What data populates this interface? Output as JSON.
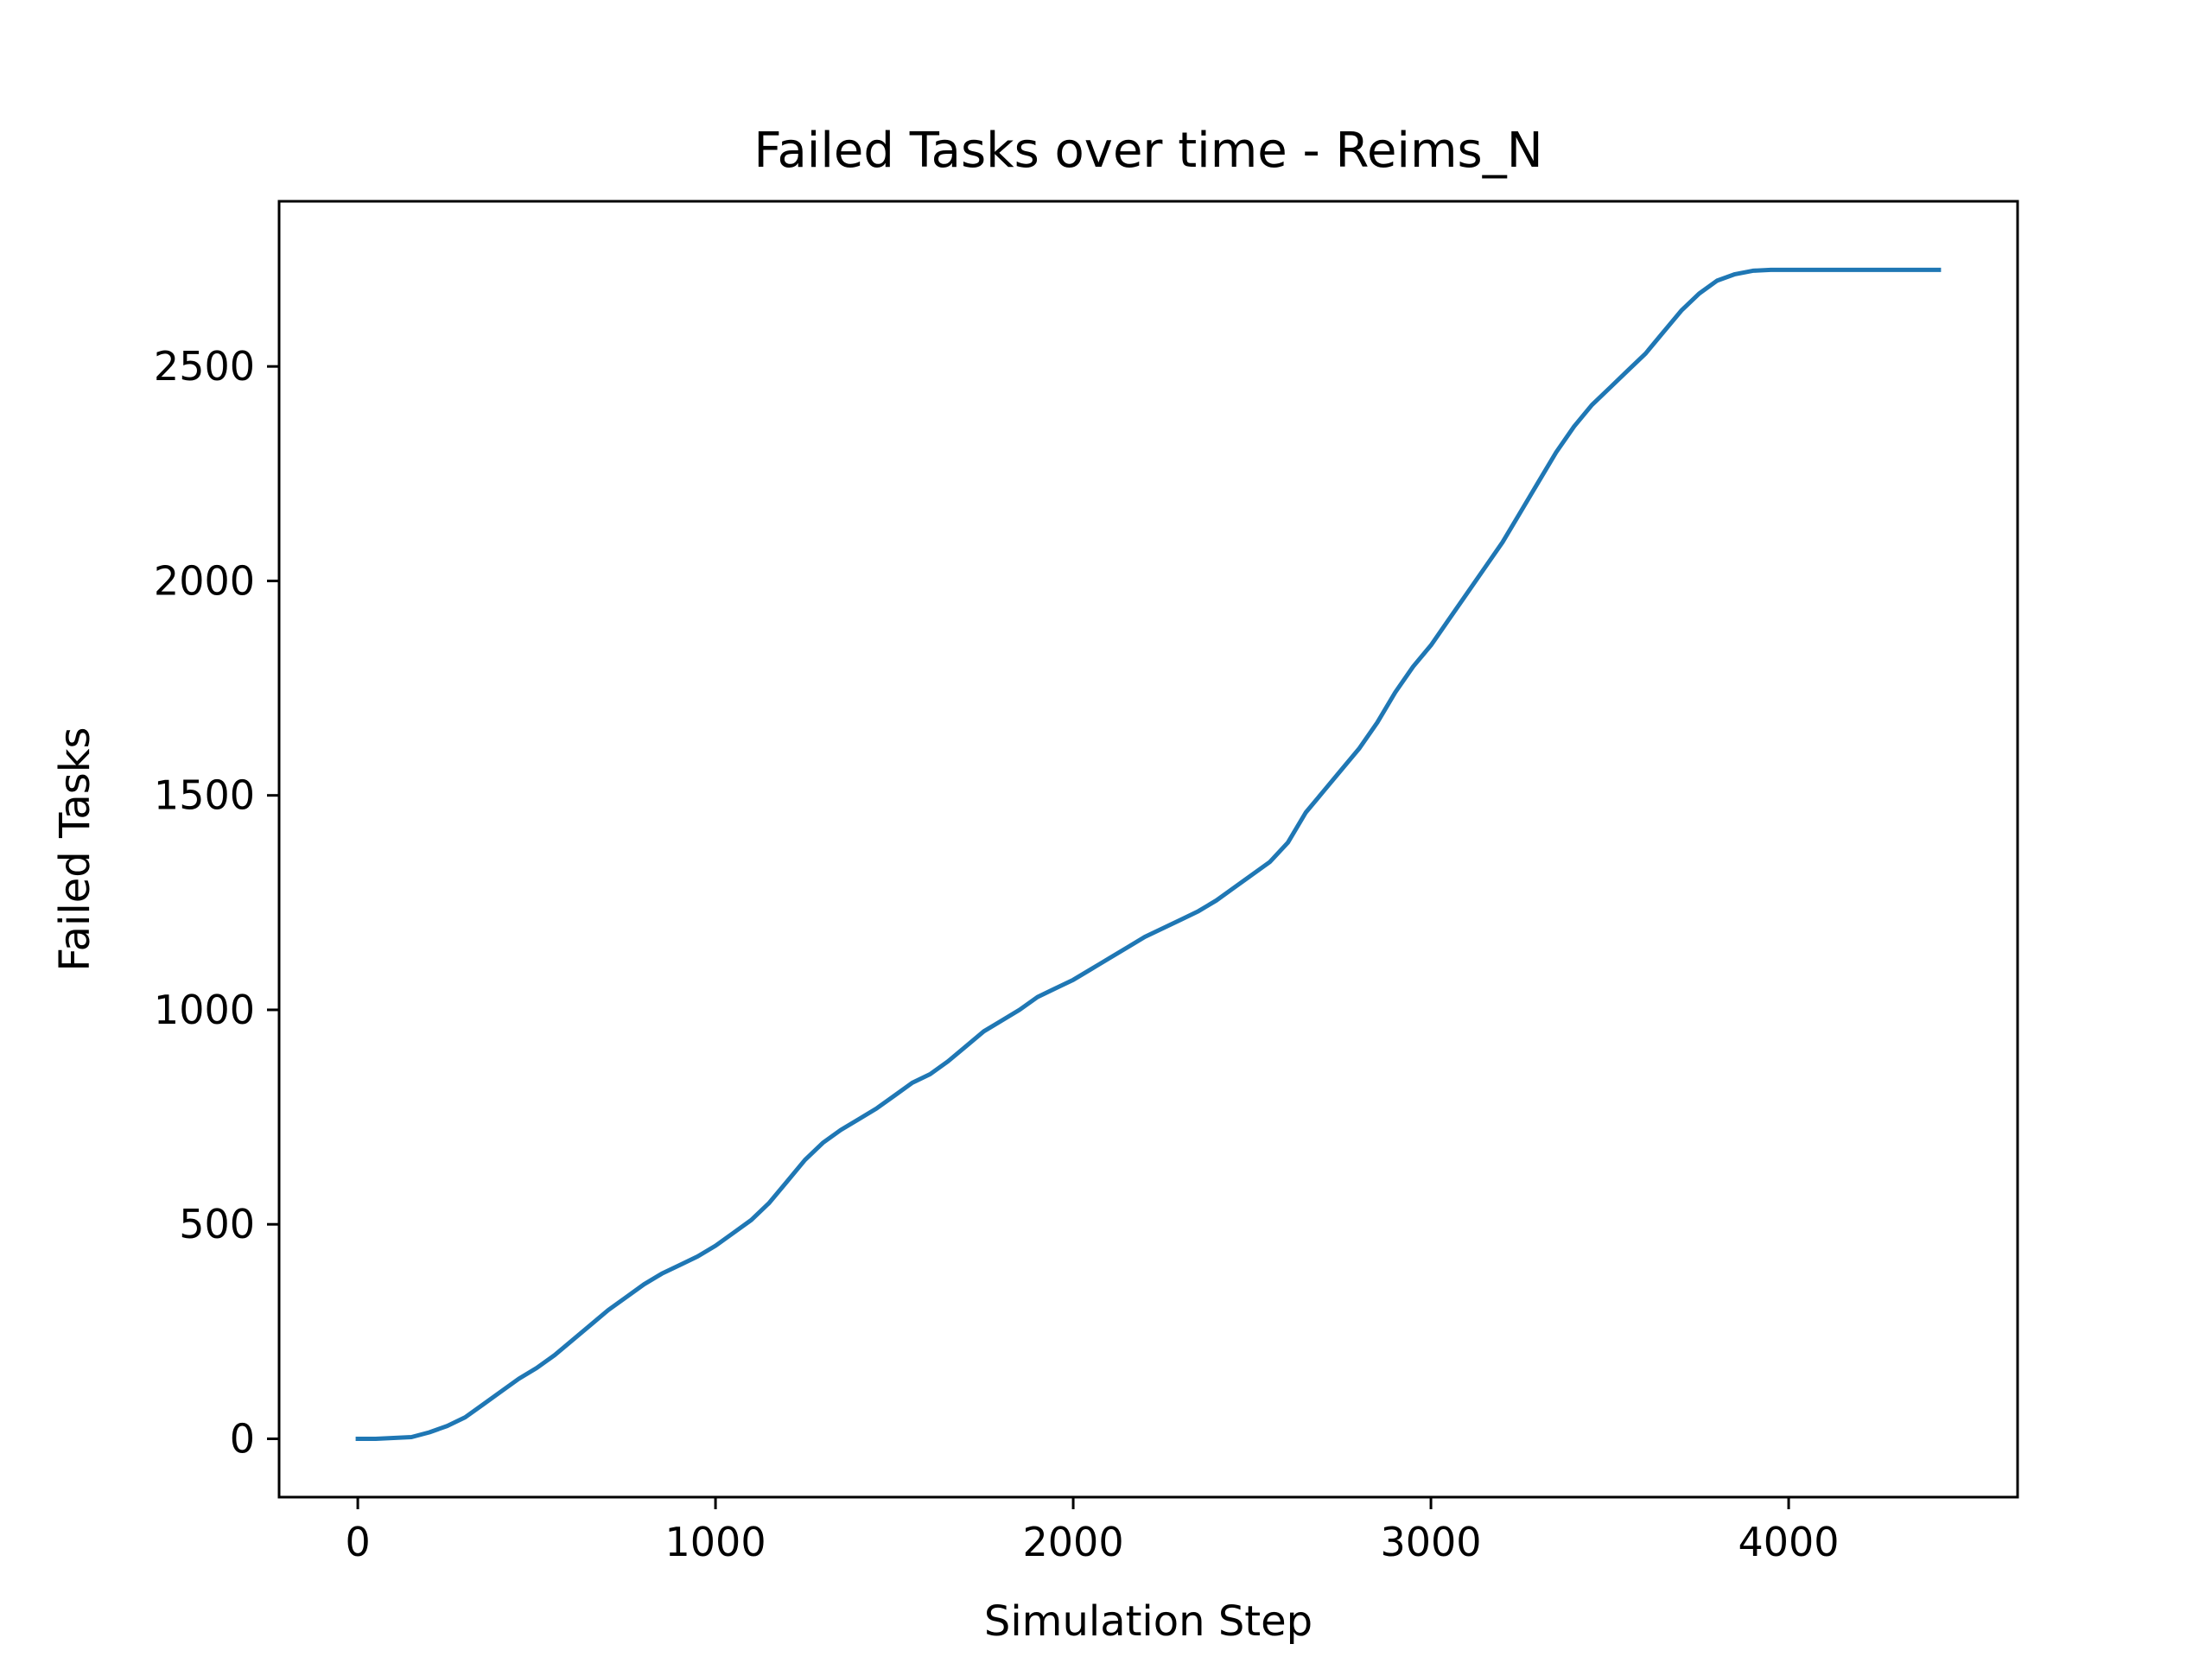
{
  "chart_data": {
    "type": "line",
    "title": "Failed Tasks over time - Reims_N",
    "xlabel": "Simulation Step",
    "ylabel": "Failed Tasks",
    "xlim": [
      -220,
      4640
    ],
    "ylim": [
      -136,
      2885
    ],
    "xticks": [
      0,
      1000,
      2000,
      3000,
      4000
    ],
    "xtick_labels": [
      "0",
      "1000",
      "2000",
      "3000",
      "4000"
    ],
    "yticks": [
      0,
      500,
      1000,
      1500,
      2000,
      2500
    ],
    "ytick_labels": [
      "0",
      "500",
      "1000",
      "1500",
      "2000",
      "2500"
    ],
    "grid": false,
    "legend": "none",
    "series": [
      {
        "color": "#1f77b4",
        "x": [
          0,
          50,
          100,
          150,
          200,
          250,
          300,
          350,
          400,
          450,
          500,
          550,
          600,
          650,
          700,
          750,
          800,
          850,
          900,
          950,
          1000,
          1050,
          1100,
          1150,
          1200,
          1250,
          1300,
          1350,
          1400,
          1450,
          1500,
          1550,
          1600,
          1650,
          1700,
          1750,
          1800,
          1850,
          1900,
          1950,
          2000,
          2050,
          2100,
          2150,
          2200,
          2250,
          2300,
          2350,
          2400,
          2450,
          2500,
          2550,
          2600,
          2650,
          2700,
          2750,
          2800,
          2850,
          2900,
          2950,
          3000,
          3050,
          3100,
          3150,
          3200,
          3250,
          3300,
          3350,
          3400,
          3450,
          3500,
          3550,
          3600,
          3650,
          3700,
          3750,
          3800,
          3850,
          3900,
          3950,
          4000,
          4100,
          4200,
          4300,
          4420
        ],
        "y": [
          0,
          0,
          2,
          4,
          15,
          30,
          50,
          80,
          110,
          140,
          165,
          195,
          230,
          265,
          300,
          330,
          360,
          385,
          405,
          425,
          450,
          480,
          510,
          550,
          600,
          650,
          690,
          720,
          745,
          770,
          800,
          830,
          850,
          880,
          915,
          950,
          975,
          1000,
          1030,
          1050,
          1070,
          1095,
          1120,
          1145,
          1170,
          1190,
          1210,
          1230,
          1255,
          1285,
          1315,
          1345,
          1390,
          1460,
          1510,
          1560,
          1610,
          1670,
          1740,
          1800,
          1850,
          1910,
          1970,
          2030,
          2090,
          2160,
          2230,
          2300,
          2360,
          2410,
          2450,
          2490,
          2530,
          2580,
          2630,
          2670,
          2700,
          2715,
          2723,
          2725,
          2725,
          2725,
          2725,
          2725,
          2725
        ]
      }
    ]
  }
}
